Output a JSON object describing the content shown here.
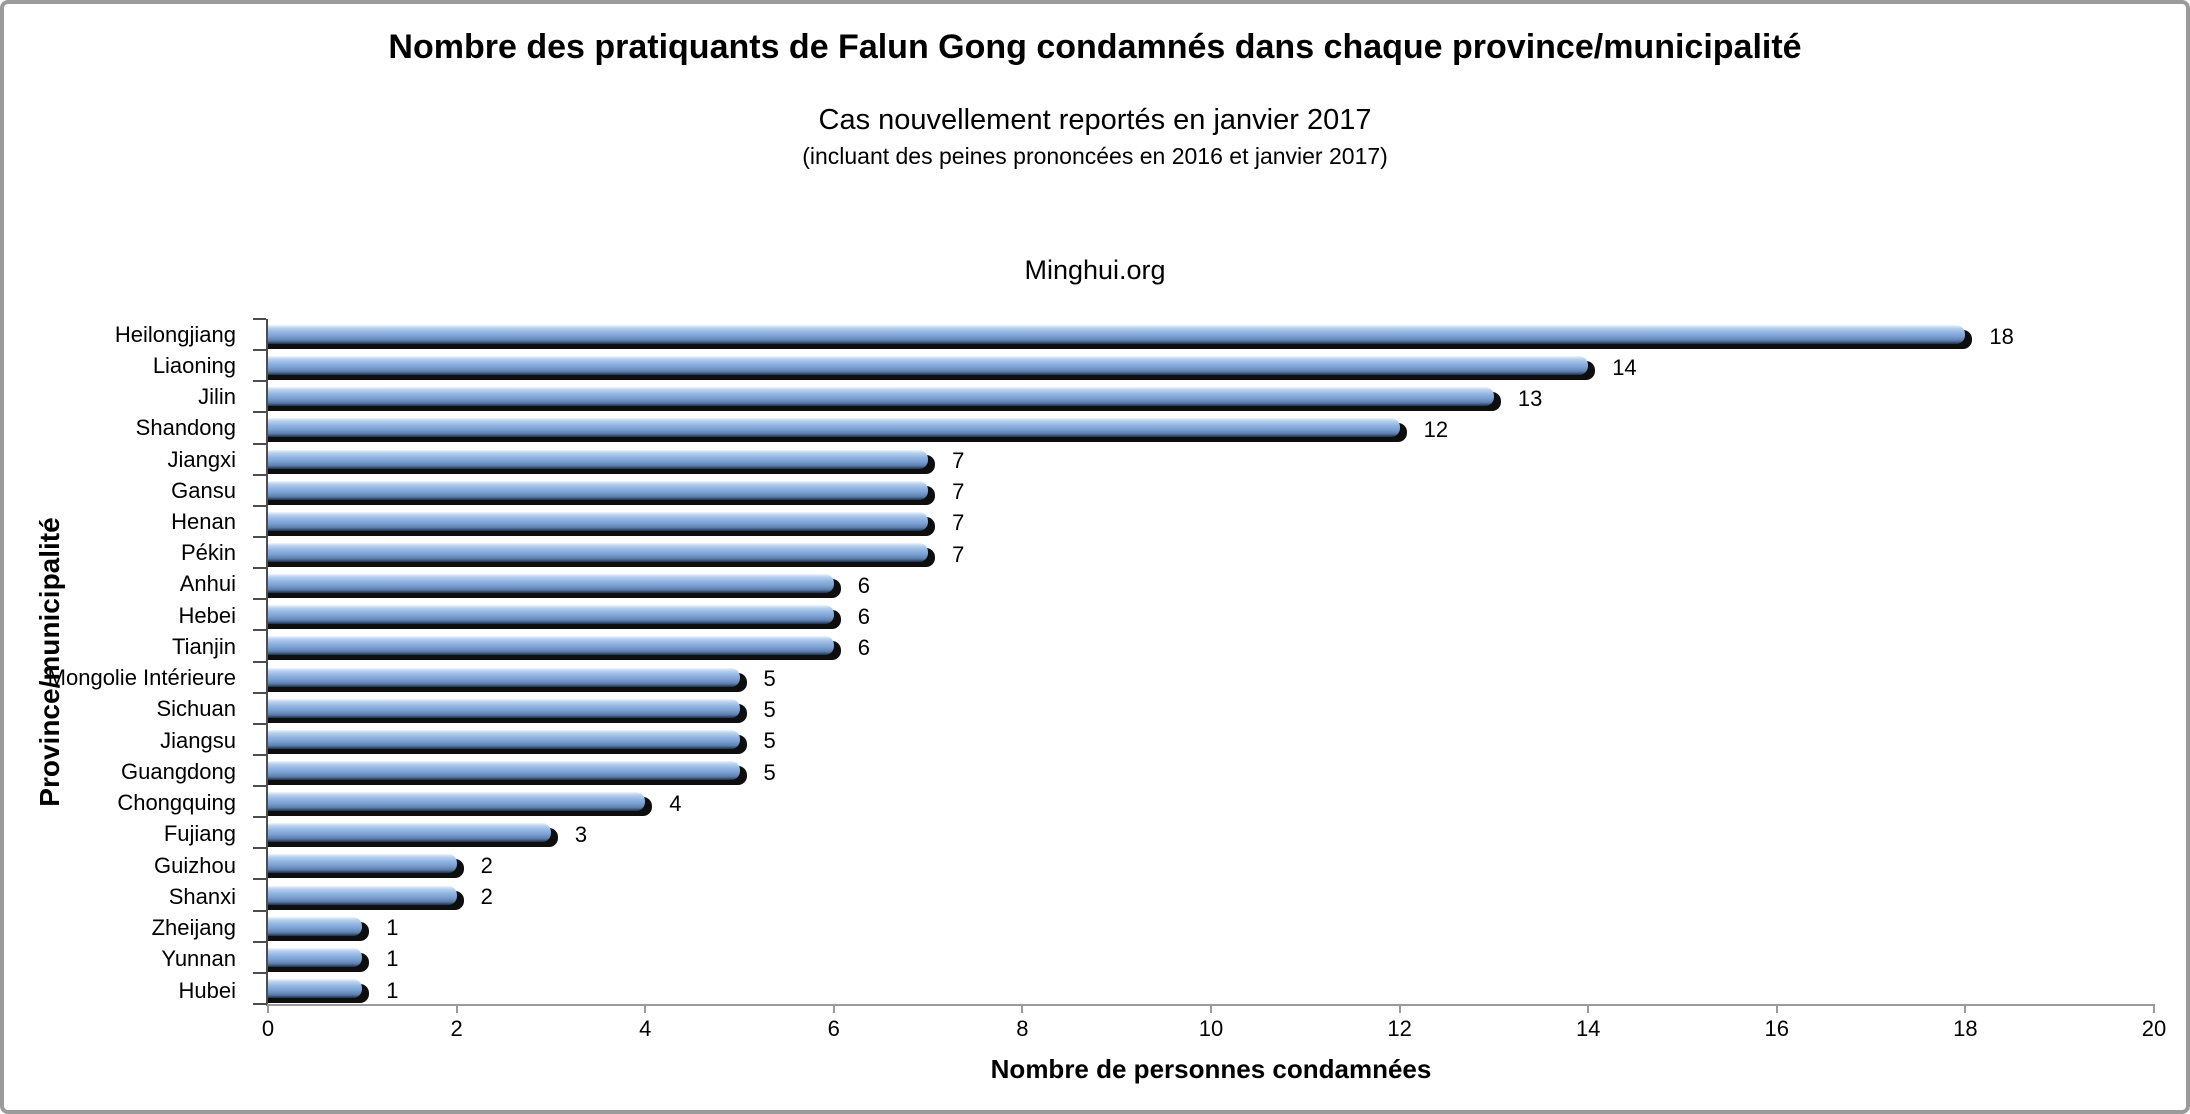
{
  "header": {
    "title": "Nombre des pratiquants de Falun Gong condamnés dans chaque province/municipalité",
    "subtitle": "Cas nouvellement reportés en janvier 2017",
    "subnote": "(incluant des peines prononcées en 2016 et janvier 2017)",
    "source": "Minghui.org"
  },
  "chart_data": {
    "type": "bar",
    "orientation": "horizontal",
    "title": "Nombre des pratiquants de Falun Gong condamnés dans chaque province/municipalité",
    "subtitle": "Cas nouvellement reportés en janvier 2017",
    "note": "(incluant des peines prononcées en 2016 et janvier 2017)",
    "source": "Minghui.org",
    "xlabel": "Nombre de personnes condamnées",
    "ylabel": "Province/municipalité",
    "xlim": [
      0,
      20
    ],
    "x_ticks": [
      0,
      2,
      4,
      6,
      8,
      10,
      12,
      14,
      16,
      18,
      20
    ],
    "grid": false,
    "legend": false,
    "data_labels": true,
    "categories": [
      "Heilongjiang",
      "Liaoning",
      "Jilin",
      "Shandong",
      "Jiangxi",
      "Gansu",
      "Henan",
      "Pékin",
      "Anhui",
      "Hebei",
      "Tianjin",
      "Mongolie Intérieure",
      "Sichuan",
      "Jiangsu",
      "Guangdong",
      "Chongquing",
      "Fujiang",
      "Guizhou",
      "Shanxi",
      "Zheijang",
      "Yunnan",
      "Hubei"
    ],
    "values": [
      18,
      14,
      13,
      12,
      7,
      7,
      7,
      7,
      6,
      6,
      6,
      5,
      5,
      5,
      5,
      4,
      3,
      2,
      2,
      1,
      1,
      1
    ],
    "colors": {
      "bar_top_light": "#eef4fb",
      "bar_light": "#b9d0ee",
      "bar_main": "#8fb3e0",
      "bar_mid": "#7ba0d2",
      "bar_dark": "#5d80ae",
      "bar_edge": "#1d3152",
      "bar_shadow": "#0e0e0e",
      "y_axis": "#4d4d4d",
      "x_axis": "#9a9a9a",
      "frame_border": "#9b9b9b",
      "background": "#ffffff",
      "text": "#000000"
    }
  }
}
